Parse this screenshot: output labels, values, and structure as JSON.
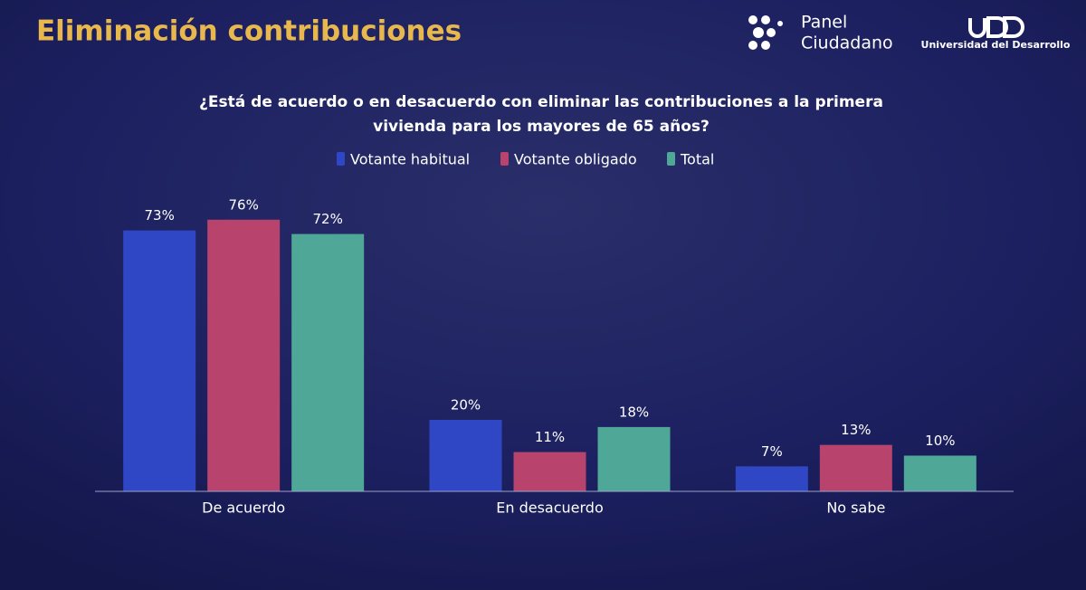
{
  "chart_data": {
    "type": "bar",
    "title": "Eliminación contribuciones",
    "subtitle": [
      "¿Está de acuerdo o en desacuerdo con eliminar las contribuciones a la primera",
      "vivienda para los mayores de 65 años?"
    ],
    "categories": [
      "De acuerdo",
      "En desacuerdo",
      "No sabe"
    ],
    "series": [
      {
        "name": "Votante habitual",
        "color": "#2f47c4",
        "values": [
          73,
          20,
          7
        ],
        "value_labels": [
          "73%",
          "20%",
          "7%"
        ]
      },
      {
        "name": "Votante obligado",
        "color": "#b8436c",
        "values": [
          76,
          11,
          13
        ],
        "value_labels": [
          "76%",
          "11%",
          "13%"
        ]
      },
      {
        "name": "Total",
        "color": "#4fa897",
        "values": [
          72,
          18,
          10
        ],
        "value_labels": [
          "72%",
          "18%",
          "10%"
        ]
      }
    ],
    "ylim": [
      0,
      100
    ],
    "legend": "top"
  },
  "logos": {
    "panel": [
      "Panel",
      "Ciudadano"
    ],
    "udd": "Universidad del Desarrollo"
  }
}
